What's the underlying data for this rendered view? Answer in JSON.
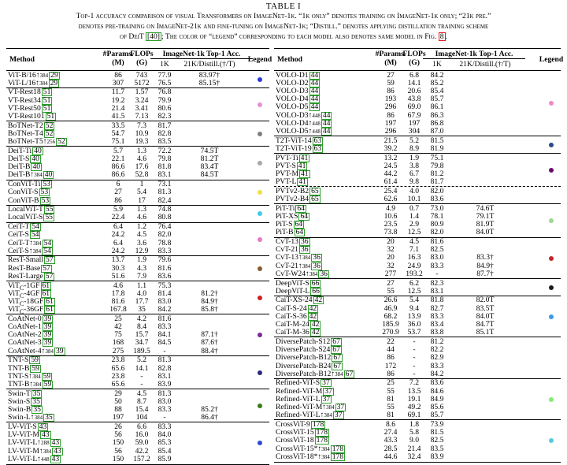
{
  "title": "TABLE I",
  "caption": {
    "line1": "Top-1 accuracy comparison of visual Transformers on ImageNet-1k. “1k only” denotes training on ImageNet-1k only; “21k pre.”",
    "line2": "denotes pre-training on ImageNet-21k and fine-tuning on ImageNet-1k; “Distill.” denotes applying distillation training scheme",
    "line3_a": "of DeiT ",
    "line3_cite": "[40]",
    "line3_b": "; The color of “legend” corresponding to each model also denotes same model in Fig. ",
    "line3_fig": "8",
    "line3_c": "."
  },
  "headers": {
    "method": "Method",
    "params": "#Params.",
    "params_unit": "(M)",
    "flops": "FLOPs",
    "flops_unit": "(G)",
    "imagenet": "ImageNet-1k  Top-1 Acc.",
    "col_1k": "1K",
    "col_21k": "21K/Distill.(†/Ƭ)",
    "legend": "Legend"
  },
  "left_groups": [
    {
      "color": "#2a3ad8",
      "rows": [
        {
          "m": "ViT-B/16↑",
          "sub": "384",
          "c": "29",
          "p": "86",
          "f": "743",
          "a": "77.9",
          "b": "83.97†"
        },
        {
          "m": "ViT-L/16↑",
          "sub": "384",
          "c": "29",
          "p": "307",
          "f": "5172",
          "a": "76.5",
          "b": "85.15†"
        }
      ]
    },
    {
      "color": "#e88fd0",
      "rows": [
        {
          "m": "VT-Rest18",
          "sub": "",
          "c": "51",
          "p": "11.7",
          "f": "1.57",
          "a": "76.8",
          "b": ""
        },
        {
          "m": "VT-Rest34",
          "sub": "",
          "c": "51",
          "p": "19.2",
          "f": "3.24",
          "a": "79.9",
          "b": ""
        },
        {
          "m": "VT-Rest50",
          "sub": "",
          "c": "51",
          "p": "21.4",
          "f": "3.41",
          "a": "80.6",
          "b": ""
        },
        {
          "m": "VT-Rest101",
          "sub": "",
          "c": "51",
          "p": "41.5",
          "f": "7.13",
          "a": "82.3",
          "b": ""
        }
      ]
    },
    {
      "color": "#7f7f7f",
      "rows": [
        {
          "m": "BoTNet-T2",
          "sub": "",
          "c": "52",
          "p": "33.5",
          "f": "7.3",
          "a": "81.7",
          "b": ""
        },
        {
          "m": "BoTNet-T4",
          "sub": "",
          "c": "52",
          "p": "54.7",
          "f": "10.9",
          "a": "82.8",
          "b": ""
        },
        {
          "m": "BoTNet-T5↑",
          "sub": "256",
          "c": "52",
          "p": "75.1",
          "f": "19.3",
          "a": "83.5",
          "b": ""
        }
      ]
    },
    {
      "color": "#a8a8a8",
      "rows": [
        {
          "m": "DeiT-Ti",
          "sub": "",
          "c": "40",
          "p": "5.7",
          "f": "1.3",
          "a": "72.2",
          "b": "74.5Ƭ"
        },
        {
          "m": "DeiT-S",
          "sub": "",
          "c": "40",
          "p": "22.1",
          "f": "4.6",
          "a": "79.8",
          "b": "81.2Ƭ"
        },
        {
          "m": "DeiT-B",
          "sub": "",
          "c": "40",
          "p": "86.6",
          "f": "17.6",
          "a": "81.8",
          "b": "83.4Ƭ"
        },
        {
          "m": "DeiT-B↑",
          "sub": "384",
          "c": "40",
          "p": "86.6",
          "f": "52.8",
          "a": "83.1",
          "b": "84.5Ƭ"
        }
      ]
    },
    {
      "color": "#f0e040",
      "rows": [
        {
          "m": "ConViT-Ti",
          "sub": "",
          "c": "53",
          "p": "6",
          "f": "1",
          "a": "73.1",
          "b": ""
        },
        {
          "m": "ConViT-S",
          "sub": "",
          "c": "53",
          "p": "27",
          "f": "5.4",
          "a": "81.3",
          "b": ""
        },
        {
          "m": "ConViT-B",
          "sub": "",
          "c": "53",
          "p": "86",
          "f": "17",
          "a": "82.4",
          "b": ""
        }
      ]
    },
    {
      "color": "#44c8e8",
      "rows": [
        {
          "m": "LocalViT-T",
          "sub": "",
          "c": "55",
          "p": "5.9",
          "f": "1.3",
          "a": "74.8",
          "b": ""
        },
        {
          "m": "LocalViT-S",
          "sub": "",
          "c": "55",
          "p": "22.4",
          "f": "4.6",
          "a": "80.8",
          "b": ""
        }
      ]
    },
    {
      "color": "#e878c8",
      "rows": [
        {
          "m": "CeiT-T",
          "sub": "",
          "c": "54",
          "p": "6.4",
          "f": "1.2",
          "a": "76.4",
          "b": ""
        },
        {
          "m": "CeiT-S",
          "sub": "",
          "c": "54",
          "p": "24.2",
          "f": "4.5",
          "a": "82.0",
          "b": ""
        },
        {
          "m": "CeiT-T↑",
          "sub": "384",
          "c": "54",
          "p": "6.4",
          "f": "3.6",
          "a": "78.8",
          "b": ""
        },
        {
          "m": "CeiT-S↑",
          "sub": "384",
          "c": "54",
          "p": "24.2",
          "f": "12.9",
          "a": "83.3",
          "b": ""
        }
      ]
    },
    {
      "color": "#8a5a2e",
      "rows": [
        {
          "m": "ResT-Small",
          "sub": "",
          "c": "57",
          "p": "13.7",
          "f": "1.9",
          "a": "79.6",
          "b": ""
        },
        {
          "m": "ResT-Base",
          "sub": "",
          "c": "57",
          "p": "30.3",
          "f": "4.3",
          "a": "81.6",
          "b": ""
        },
        {
          "m": "ResT-Large",
          "sub": "",
          "c": "57",
          "p": "51.6",
          "f": "7.9",
          "a": "83.6",
          "b": ""
        }
      ]
    },
    {
      "color": "#d02020",
      "rows": [
        {
          "m": "ViT<sub>C</sub>-1GF",
          "sub": "",
          "c": "61",
          "p": "4.6",
          "f": "1.1",
          "a": "75.3",
          "b": ""
        },
        {
          "m": "ViT<sub>C</sub>-4GF",
          "sub": "",
          "c": "61",
          "p": "17.8",
          "f": "4.0",
          "a": "81.4",
          "b": "81.2†"
        },
        {
          "m": "ViT<sub>C</sub>-18GF",
          "sub": "",
          "c": "61",
          "p": "81.6",
          "f": "17.7",
          "a": "83.0",
          "b": "84.9†"
        },
        {
          "m": "ViT<sub>C</sub>-36GF",
          "sub": "",
          "c": "61",
          "p": "167.8",
          "f": "35",
          "a": "84.2",
          "b": "85.8†"
        }
      ]
    },
    {
      "color": "#7a2a9a",
      "rows": [
        {
          "m": "CoAtNet-0",
          "sub": "",
          "c": "39",
          "p": "25",
          "f": "4.2",
          "a": "81.6",
          "b": ""
        },
        {
          "m": "CoAtNet-1",
          "sub": "",
          "c": "39",
          "p": "42",
          "f": "8.4",
          "a": "83.3",
          "b": ""
        },
        {
          "m": "CoAtNet-2",
          "sub": "",
          "c": "39",
          "p": "75",
          "f": "15.7",
          "a": "84.1",
          "b": "87.1†"
        },
        {
          "m": "CoAtNet-3",
          "sub": "",
          "c": "39",
          "p": "168",
          "f": "34.7",
          "a": "84.5",
          "b": "87.6†"
        },
        {
          "m": "CoAtNet-4↑",
          "sub": "384",
          "c": "39",
          "p": "275",
          "f": "189.5",
          "a": "-",
          "b": "88.4†"
        }
      ]
    },
    {
      "color": "#2a2a80",
      "rows": [
        {
          "m": "TNT-S",
          "sub": "",
          "c": "59",
          "p": "23.8",
          "f": "5.2",
          "a": "81.3",
          "b": ""
        },
        {
          "m": "TNT-B",
          "sub": "",
          "c": "59",
          "p": "65.6",
          "f": "14.1",
          "a": "82.8",
          "b": ""
        },
        {
          "m": "TNT-S↑",
          "sub": "384",
          "c": "59",
          "p": "23.8",
          "f": "-",
          "a": "83.1",
          "b": ""
        },
        {
          "m": "TNT-B↑",
          "sub": "384",
          "c": "59",
          "p": "65.6",
          "f": "-",
          "a": "83.9",
          "b": ""
        }
      ]
    },
    {
      "color": "#3a7a1a",
      "rows": [
        {
          "m": "Swin-T",
          "sub": "",
          "c": "35",
          "p": "29",
          "f": "4.5",
          "a": "81.3",
          "b": ""
        },
        {
          "m": "Swin-S",
          "sub": "",
          "c": "35",
          "p": "50",
          "f": "8.7",
          "a": "83.0",
          "b": ""
        },
        {
          "m": "Swin-B",
          "sub": "",
          "c": "35",
          "p": "88",
          "f": "15.4",
          "a": "83.3",
          "b": "85.2†"
        },
        {
          "m": "Swin-L↑",
          "sub": "384",
          "c": "35",
          "p": "197",
          "f": "104",
          "a": "-",
          "b": "86.4†"
        }
      ]
    },
    {
      "color": "#2a4ad8",
      "rows": [
        {
          "m": "LV-ViT-S",
          "sub": "",
          "c": "43",
          "p": "26",
          "f": "6.6",
          "a": "83.3",
          "b": ""
        },
        {
          "m": "LV-ViT-M",
          "sub": "",
          "c": "43",
          "p": "56",
          "f": "16.0",
          "a": "84.0",
          "b": ""
        },
        {
          "m": "LV-ViT-L↑",
          "sub": "288",
          "c": "43",
          "p": "150",
          "f": "59.0",
          "a": "85.3",
          "b": ""
        },
        {
          "m": "LV-ViT-M↑",
          "sub": "384",
          "c": "43",
          "p": "56",
          "f": "42.2",
          "a": "85.4",
          "b": ""
        },
        {
          "m": "LV-ViT-L↑",
          "sub": "448",
          "c": "43",
          "p": "150",
          "f": "157.2",
          "a": "85.9",
          "b": ""
        }
      ]
    }
  ],
  "right_groups": [
    {
      "color": "#f088c8",
      "rows": [
        {
          "m": "VOLO-D1",
          "sub": "",
          "c": "44",
          "p": "27",
          "f": "6.8",
          "a": "84.2",
          "b": ""
        },
        {
          "m": "VOLO-D2",
          "sub": "",
          "c": "44",
          "p": "59",
          "f": "14.1",
          "a": "85.2",
          "b": ""
        },
        {
          "m": "VOLO-D3",
          "sub": "",
          "c": "44",
          "p": "86",
          "f": "20.6",
          "a": "85.4",
          "b": ""
        },
        {
          "m": "VOLO-D4",
          "sub": "",
          "c": "44",
          "p": "193",
          "f": "43.8",
          "a": "85.7",
          "b": ""
        },
        {
          "m": "VOLO-D5",
          "sub": "",
          "c": "44",
          "p": "296",
          "f": "69.0",
          "a": "86.1",
          "b": ""
        },
        {
          "m": "VOLO-D3↑",
          "sub": "448",
          "c": "44",
          "p": "86",
          "f": "67.9",
          "a": "86.3",
          "b": ""
        },
        {
          "m": "VOLO-D4↑",
          "sub": "448",
          "c": "44",
          "p": "197",
          "f": "197",
          "a": "86.8",
          "b": ""
        },
        {
          "m": "VOLO-D5↑",
          "sub": "448",
          "c": "44",
          "p": "296",
          "f": "304",
          "a": "87.0",
          "b": ""
        }
      ]
    },
    {
      "color": "#2a4a8a",
      "rows": [
        {
          "m": "T2T-ViT-14",
          "sub": "",
          "c": "63",
          "p": "21.5",
          "f": "5.2",
          "a": "81.5",
          "b": ""
        },
        {
          "m": "T2T-ViT-19",
          "sub": "",
          "c": "63",
          "p": "39.2",
          "f": "8.9",
          "a": "81.9",
          "b": ""
        }
      ]
    },
    {
      "color": "#6a0a6a",
      "rows": [
        {
          "m": "PVT-Ti",
          "sub": "",
          "c": "41",
          "p": "13.2",
          "f": "1.9",
          "a": "75.1",
          "b": ""
        },
        {
          "m": "PVT-S",
          "sub": "",
          "c": "41",
          "p": "24.5",
          "f": "3.8",
          "a": "79.8",
          "b": ""
        },
        {
          "m": "PVT-M",
          "sub": "",
          "c": "41",
          "p": "44.2",
          "f": "6.7",
          "a": "81.2",
          "b": ""
        },
        {
          "m": "PVT-L",
          "sub": "",
          "c": "41",
          "p": "61.4",
          "f": "9.8",
          "a": "81.7",
          "b": ""
        }
      ]
    },
    {
      "color": "",
      "dashed_top": true,
      "rows": [
        {
          "m": "PVTv2-B2",
          "sub": "",
          "c": "65",
          "p": "25.4",
          "f": "4.0",
          "a": "82.0",
          "b": ""
        },
        {
          "m": "PVTv2-B4",
          "sub": "",
          "c": "65",
          "p": "62.6",
          "f": "10.1",
          "a": "83.6",
          "b": ""
        }
      ]
    },
    {
      "color": "#a0d890",
      "rows": [
        {
          "m": "PiT-Ti",
          "sub": "",
          "c": "64",
          "p": "4.9",
          "f": "0.7",
          "a": "73.0",
          "b": "74.6Ƭ"
        },
        {
          "m": "PiT-XS",
          "sub": "",
          "c": "64",
          "p": "10.6",
          "f": "1.4",
          "a": "78.1",
          "b": "79.1Ƭ"
        },
        {
          "m": "PiT-S",
          "sub": "",
          "c": "64",
          "p": "23.5",
          "f": "2.9",
          "a": "80.9",
          "b": "81.9Ƭ"
        },
        {
          "m": "PiT-B",
          "sub": "",
          "c": "64",
          "p": "73.8",
          "f": "12.5",
          "a": "82.0",
          "b": "84.0Ƭ"
        }
      ]
    },
    {
      "color": "#c02828",
      "rows": [
        {
          "m": "CvT-13",
          "sub": "",
          "c": "36",
          "p": "20",
          "f": "4.5",
          "a": "81.6",
          "b": ""
        },
        {
          "m": "CvT-21",
          "sub": "",
          "c": "36",
          "p": "32",
          "f": "7.1",
          "a": "82.5",
          "b": ""
        },
        {
          "m": "CvT-13↑",
          "sub": "384",
          "c": "36",
          "p": "20",
          "f": "16.3",
          "a": "83.0",
          "b": "83.3†"
        },
        {
          "m": "CvT-21↑",
          "sub": "384",
          "c": "36",
          "p": "32",
          "f": "24.9",
          "a": "83.3",
          "b": "84.9†"
        },
        {
          "m": "CvT-W24↑",
          "sub": "384",
          "c": "36",
          "p": "277",
          "f": "193.2",
          "a": "-",
          "b": "87.7†"
        }
      ]
    },
    {
      "color": "#1a1a1a",
      "rows": [
        {
          "m": "DeepViT-S",
          "sub": "",
          "c": "66",
          "p": "27",
          "f": "6.2",
          "a": "82.3",
          "b": ""
        },
        {
          "m": "DeepViT-L",
          "sub": "",
          "c": "66",
          "p": "55",
          "f": "12.5",
          "a": "83.1",
          "b": ""
        }
      ]
    },
    {
      "color": "#3a9ae8",
      "rows": [
        {
          "m": "CaiT-XS-24",
          "sub": "",
          "c": "42",
          "p": "26.6",
          "f": "5.4",
          "a": "81.8",
          "b": "82.0Ƭ"
        },
        {
          "m": "CaiT-S-24",
          "sub": "",
          "c": "42",
          "p": "46.9",
          "f": "9.4",
          "a": "82.7",
          "b": "83.5Ƭ"
        },
        {
          "m": "CaiT-S-36",
          "sub": "",
          "c": "42",
          "p": "68.2",
          "f": "13.9",
          "a": "83.3",
          "b": "84.0Ƭ"
        },
        {
          "m": "CaiT-M-24",
          "sub": "",
          "c": "42",
          "p": "185.9",
          "f": "36.0",
          "a": "83.4",
          "b": "84.7Ƭ"
        },
        {
          "m": "CaiT-M-36",
          "sub": "",
          "c": "42",
          "p": "270.9",
          "f": "53.7",
          "a": "83.8",
          "b": "85.1Ƭ"
        }
      ]
    },
    {
      "color": "",
      "rows": [
        {
          "m": "DiversePatch-S12",
          "sub": "",
          "c": "67",
          "p": "22",
          "f": "-",
          "a": "81.2",
          "b": ""
        },
        {
          "m": "DiversePatch-S24",
          "sub": "",
          "c": "67",
          "p": "44",
          "f": "-",
          "a": "82.2",
          "b": ""
        },
        {
          "m": "DiversePatch-B12",
          "sub": "",
          "c": "67",
          "p": "86",
          "f": "-",
          "a": "82.9",
          "b": ""
        },
        {
          "m": "DiversePatch-B24",
          "sub": "",
          "c": "67",
          "p": "172",
          "f": "-",
          "a": "83.3",
          "b": ""
        },
        {
          "m": "DiversePatch-B12↑",
          "sub": "384",
          "c": "67",
          "p": "86",
          "f": "-",
          "a": "84.2",
          "b": ""
        }
      ]
    },
    {
      "color": "#88e878",
      "rows": [
        {
          "m": "Refined-ViT-S",
          "sub": "",
          "c": "37",
          "p": "25",
          "f": "7.2",
          "a": "83.6",
          "b": ""
        },
        {
          "m": "Refined-ViT-M",
          "sub": "",
          "c": "37",
          "p": "55",
          "f": "13.5",
          "a": "84.6",
          "b": ""
        },
        {
          "m": "Refined-ViT-L",
          "sub": "",
          "c": "37",
          "p": "81",
          "f": "19.1",
          "a": "84.9",
          "b": ""
        },
        {
          "m": "Refined-ViT-M↑",
          "sub": "384",
          "c": "37",
          "p": "55",
          "f": "49.2",
          "a": "85.6",
          "b": ""
        },
        {
          "m": "Refined-ViT-L↑",
          "sub": "384",
          "c": "37",
          "p": "81",
          "f": "69.1",
          "a": "85.7",
          "b": ""
        }
      ]
    },
    {
      "color": "#58c8e0",
      "rows": [
        {
          "m": "CrossViT-9",
          "sub": "",
          "c": "178",
          "p": "8.6",
          "f": "1.8",
          "a": "73.9",
          "b": ""
        },
        {
          "m": "CrossViT-15",
          "sub": "",
          "c": "178",
          "p": "27.4",
          "f": "5.8",
          "a": "81.5",
          "b": ""
        },
        {
          "m": "CrossViT-18",
          "sub": "",
          "c": "178",
          "p": "43.3",
          "f": "9.0",
          "a": "82.5",
          "b": ""
        },
        {
          "m": "CrossViT-15*↑",
          "sub": "384",
          "c": "178",
          "p": "28.5",
          "f": "21.4",
          "a": "83.5",
          "b": ""
        },
        {
          "m": "CrossViT-18*↑",
          "sub": "384",
          "c": "178",
          "p": "44.6",
          "f": "32.4",
          "a": "83.9",
          "b": ""
        }
      ]
    }
  ]
}
